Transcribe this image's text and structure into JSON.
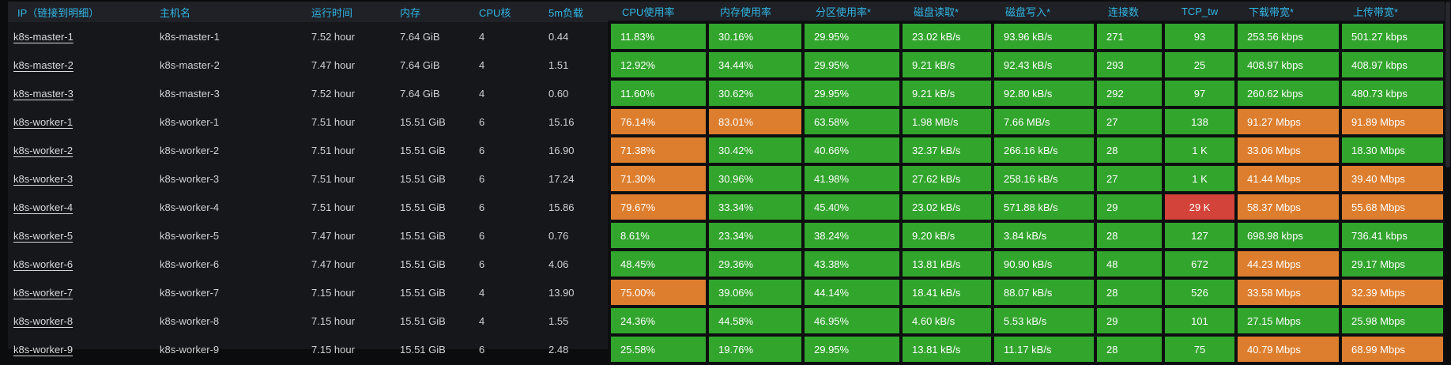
{
  "colors": {
    "header_text": "#33b5e5",
    "green": "#32a52d",
    "orange": "#dd7e2e",
    "red": "#d4433a",
    "metric_text": "#ffffff",
    "row_text": "#d0d1d3",
    "panel_bg": "#15171a",
    "page_bg": "#0b0c0e",
    "grid": "#0d0e10",
    "header_bg": "#1f2126"
  },
  "table": {
    "columns": [
      {
        "id": "ip",
        "label": "IP（链接到明细）",
        "type": "link"
      },
      {
        "id": "hostname",
        "label": "主机名",
        "type": "text"
      },
      {
        "id": "uptime",
        "label": "运行时间",
        "type": "text"
      },
      {
        "id": "memory",
        "label": "内存",
        "type": "text"
      },
      {
        "id": "cpu_cores",
        "label": "CPU核",
        "type": "text"
      },
      {
        "id": "load_5m",
        "label": "5m负载",
        "type": "text"
      },
      {
        "id": "cpu_usage",
        "label": "CPU使用率",
        "type": "metric"
      },
      {
        "id": "mem_usage",
        "label": "内存使用率",
        "type": "metric"
      },
      {
        "id": "partition_usage",
        "label": "分区使用率*",
        "type": "metric"
      },
      {
        "id": "disk_read",
        "label": "磁盘读取*",
        "type": "metric"
      },
      {
        "id": "disk_write",
        "label": "磁盘写入*",
        "type": "metric"
      },
      {
        "id": "connections",
        "label": "连接数",
        "type": "metric"
      },
      {
        "id": "tcp_tw",
        "label": "TCP_tw",
        "type": "metric",
        "align": "center"
      },
      {
        "id": "download",
        "label": "下载带宽*",
        "type": "metric"
      },
      {
        "id": "upload",
        "label": "上传带宽*",
        "type": "metric"
      }
    ],
    "rows": [
      {
        "ip": "k8s-master-1",
        "hostname": "k8s-master-1",
        "uptime": "7.52 hour",
        "memory": "7.64 GiB",
        "cpu_cores": "4",
        "load_5m": "0.44",
        "metrics": {
          "cpu_usage": [
            "11.83%",
            "green"
          ],
          "mem_usage": [
            "30.16%",
            "green"
          ],
          "partition_usage": [
            "29.95%",
            "green"
          ],
          "disk_read": [
            "23.02 kB/s",
            "green"
          ],
          "disk_write": [
            "93.96 kB/s",
            "green"
          ],
          "connections": [
            "271",
            "green"
          ],
          "tcp_tw": [
            "93",
            "green"
          ],
          "download": [
            "253.56 kbps",
            "green"
          ],
          "upload": [
            "501.27 kbps",
            "green"
          ]
        }
      },
      {
        "ip": "k8s-master-2",
        "hostname": "k8s-master-2",
        "uptime": "7.47 hour",
        "memory": "7.64 GiB",
        "cpu_cores": "4",
        "load_5m": "1.51",
        "metrics": {
          "cpu_usage": [
            "12.92%",
            "green"
          ],
          "mem_usage": [
            "34.44%",
            "green"
          ],
          "partition_usage": [
            "29.95%",
            "green"
          ],
          "disk_read": [
            "9.21 kB/s",
            "green"
          ],
          "disk_write": [
            "92.43 kB/s",
            "green"
          ],
          "connections": [
            "293",
            "green"
          ],
          "tcp_tw": [
            "25",
            "green"
          ],
          "download": [
            "408.97 kbps",
            "green"
          ],
          "upload": [
            "408.97 kbps",
            "green"
          ]
        }
      },
      {
        "ip": "k8s-master-3",
        "hostname": "k8s-master-3",
        "uptime": "7.52 hour",
        "memory": "7.64 GiB",
        "cpu_cores": "4",
        "load_5m": "0.60",
        "metrics": {
          "cpu_usage": [
            "11.60%",
            "green"
          ],
          "mem_usage": [
            "30.62%",
            "green"
          ],
          "partition_usage": [
            "29.95%",
            "green"
          ],
          "disk_read": [
            "9.21 kB/s",
            "green"
          ],
          "disk_write": [
            "92.80 kB/s",
            "green"
          ],
          "connections": [
            "292",
            "green"
          ],
          "tcp_tw": [
            "97",
            "green"
          ],
          "download": [
            "260.62 kbps",
            "green"
          ],
          "upload": [
            "480.73 kbps",
            "green"
          ]
        }
      },
      {
        "ip": "k8s-worker-1",
        "hostname": "k8s-worker-1",
        "uptime": "7.51 hour",
        "memory": "15.51 GiB",
        "cpu_cores": "6",
        "load_5m": "15.16",
        "metrics": {
          "cpu_usage": [
            "76.14%",
            "orange"
          ],
          "mem_usage": [
            "83.01%",
            "orange"
          ],
          "partition_usage": [
            "63.58%",
            "green"
          ],
          "disk_read": [
            "1.98 MB/s",
            "green"
          ],
          "disk_write": [
            "7.66 MB/s",
            "green"
          ],
          "connections": [
            "27",
            "green"
          ],
          "tcp_tw": [
            "138",
            "green"
          ],
          "download": [
            "91.27 Mbps",
            "orange"
          ],
          "upload": [
            "91.89 Mbps",
            "orange"
          ]
        }
      },
      {
        "ip": "k8s-worker-2",
        "hostname": "k8s-worker-2",
        "uptime": "7.51 hour",
        "memory": "15.51 GiB",
        "cpu_cores": "6",
        "load_5m": "16.90",
        "metrics": {
          "cpu_usage": [
            "71.38%",
            "orange"
          ],
          "mem_usage": [
            "30.42%",
            "green"
          ],
          "partition_usage": [
            "40.66%",
            "green"
          ],
          "disk_read": [
            "32.37 kB/s",
            "green"
          ],
          "disk_write": [
            "266.16 kB/s",
            "green"
          ],
          "connections": [
            "28",
            "green"
          ],
          "tcp_tw": [
            "1 K",
            "green"
          ],
          "download": [
            "33.06 Mbps",
            "orange"
          ],
          "upload": [
            "18.30 Mbps",
            "green"
          ]
        }
      },
      {
        "ip": "k8s-worker-3",
        "hostname": "k8s-worker-3",
        "uptime": "7.51 hour",
        "memory": "15.51 GiB",
        "cpu_cores": "6",
        "load_5m": "17.24",
        "metrics": {
          "cpu_usage": [
            "71.30%",
            "orange"
          ],
          "mem_usage": [
            "30.96%",
            "green"
          ],
          "partition_usage": [
            "41.98%",
            "green"
          ],
          "disk_read": [
            "27.62 kB/s",
            "green"
          ],
          "disk_write": [
            "258.16 kB/s",
            "green"
          ],
          "connections": [
            "27",
            "green"
          ],
          "tcp_tw": [
            "1 K",
            "green"
          ],
          "download": [
            "41.44 Mbps",
            "orange"
          ],
          "upload": [
            "39.40 Mbps",
            "orange"
          ]
        }
      },
      {
        "ip": "k8s-worker-4",
        "hostname": "k8s-worker-4",
        "uptime": "7.51 hour",
        "memory": "15.51 GiB",
        "cpu_cores": "6",
        "load_5m": "15.86",
        "metrics": {
          "cpu_usage": [
            "79.67%",
            "orange"
          ],
          "mem_usage": [
            "33.34%",
            "green"
          ],
          "partition_usage": [
            "45.40%",
            "green"
          ],
          "disk_read": [
            "23.02 kB/s",
            "green"
          ],
          "disk_write": [
            "571.88 kB/s",
            "green"
          ],
          "connections": [
            "29",
            "green"
          ],
          "tcp_tw": [
            "29 K",
            "red"
          ],
          "download": [
            "58.37 Mbps",
            "orange"
          ],
          "upload": [
            "55.68 Mbps",
            "orange"
          ]
        }
      },
      {
        "ip": "k8s-worker-5",
        "hostname": "k8s-worker-5",
        "uptime": "7.47 hour",
        "memory": "15.51 GiB",
        "cpu_cores": "6",
        "load_5m": "0.76",
        "metrics": {
          "cpu_usage": [
            "8.61%",
            "green"
          ],
          "mem_usage": [
            "23.34%",
            "green"
          ],
          "partition_usage": [
            "38.24%",
            "green"
          ],
          "disk_read": [
            "9.20 kB/s",
            "green"
          ],
          "disk_write": [
            "3.84 kB/s",
            "green"
          ],
          "connections": [
            "28",
            "green"
          ],
          "tcp_tw": [
            "127",
            "green"
          ],
          "download": [
            "698.98 kbps",
            "green"
          ],
          "upload": [
            "736.41 kbps",
            "green"
          ]
        }
      },
      {
        "ip": "k8s-worker-6",
        "hostname": "k8s-worker-6",
        "uptime": "7.47 hour",
        "memory": "15.51 GiB",
        "cpu_cores": "6",
        "load_5m": "4.06",
        "metrics": {
          "cpu_usage": [
            "48.45%",
            "green"
          ],
          "mem_usage": [
            "29.36%",
            "green"
          ],
          "partition_usage": [
            "43.38%",
            "green"
          ],
          "disk_read": [
            "13.81 kB/s",
            "green"
          ],
          "disk_write": [
            "90.90 kB/s",
            "green"
          ],
          "connections": [
            "48",
            "green"
          ],
          "tcp_tw": [
            "672",
            "green"
          ],
          "download": [
            "44.23 Mbps",
            "orange"
          ],
          "upload": [
            "29.17 Mbps",
            "green"
          ]
        }
      },
      {
        "ip": "k8s-worker-7",
        "hostname": "k8s-worker-7",
        "uptime": "7.15 hour",
        "memory": "15.51 GiB",
        "cpu_cores": "4",
        "load_5m": "13.90",
        "metrics": {
          "cpu_usage": [
            "75.00%",
            "orange"
          ],
          "mem_usage": [
            "39.06%",
            "green"
          ],
          "partition_usage": [
            "44.14%",
            "green"
          ],
          "disk_read": [
            "18.41 kB/s",
            "green"
          ],
          "disk_write": [
            "88.07 kB/s",
            "green"
          ],
          "connections": [
            "28",
            "green"
          ],
          "tcp_tw": [
            "526",
            "green"
          ],
          "download": [
            "33.58 Mbps",
            "orange"
          ],
          "upload": [
            "32.39 Mbps",
            "orange"
          ]
        }
      },
      {
        "ip": "k8s-worker-8",
        "hostname": "k8s-worker-8",
        "uptime": "7.15 hour",
        "memory": "15.51 GiB",
        "cpu_cores": "4",
        "load_5m": "1.55",
        "metrics": {
          "cpu_usage": [
            "24.36%",
            "green"
          ],
          "mem_usage": [
            "44.58%",
            "green"
          ],
          "partition_usage": [
            "46.95%",
            "green"
          ],
          "disk_read": [
            "4.60 kB/s",
            "green"
          ],
          "disk_write": [
            "5.53 kB/s",
            "green"
          ],
          "connections": [
            "29",
            "green"
          ],
          "tcp_tw": [
            "101",
            "green"
          ],
          "download": [
            "27.15 Mbps",
            "green"
          ],
          "upload": [
            "25.98 Mbps",
            "green"
          ]
        }
      },
      {
        "ip": "k8s-worker-9",
        "hostname": "k8s-worker-9",
        "uptime": "7.15 hour",
        "memory": "15.51 GiB",
        "cpu_cores": "6",
        "load_5m": "2.48",
        "metrics": {
          "cpu_usage": [
            "25.58%",
            "green"
          ],
          "mem_usage": [
            "19.76%",
            "green"
          ],
          "partition_usage": [
            "29.95%",
            "green"
          ],
          "disk_read": [
            "13.81 kB/s",
            "green"
          ],
          "disk_write": [
            "11.17 kB/s",
            "green"
          ],
          "connections": [
            "28",
            "green"
          ],
          "tcp_tw": [
            "75",
            "green"
          ],
          "download": [
            "40.79 Mbps",
            "orange"
          ],
          "upload": [
            "68.99 Mbps",
            "orange"
          ]
        }
      }
    ]
  }
}
